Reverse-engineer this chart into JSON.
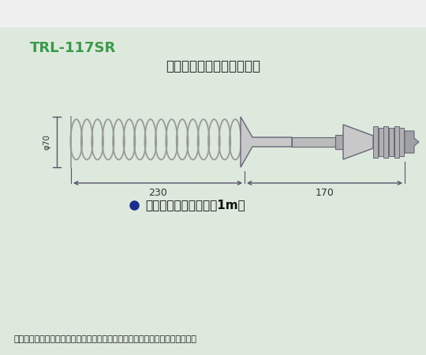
{
  "bg_outer": "#f0f0f0",
  "bg_inner": "#dce9dc",
  "title_code": "TRL-117SR",
  "title_code_color": "#3a9a4a",
  "title_desc": "スパイラル銅管メッキ仕上",
  "title_desc_color": "#222222",
  "dim_230": "230",
  "dim_170": "170",
  "dim_phi": "φ70",
  "bullet_text": "フレキシブルチューブ1m付",
  "bullet_color": "#1a2d8c",
  "footer_text": "・オプション以外の変更にも対応いたしますのでお気軽にお問い合せください",
  "line_color": "#555566",
  "coil_color": "#999999",
  "part_fill": "#c8c8c8",
  "part_edge": "#666677"
}
